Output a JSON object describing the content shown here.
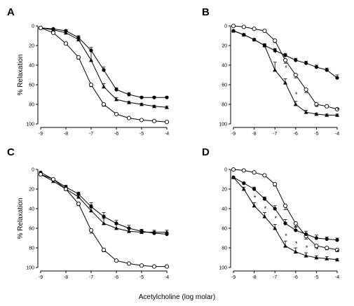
{
  "figure": {
    "shared_xlabel": "Acetylcholine (log molar)",
    "shared_ylabel": "% Relaxation"
  },
  "chart_data": [
    {
      "panel": "A",
      "type": "line",
      "ylabel": "% Relaxation",
      "xlim": [
        -9,
        -4
      ],
      "ylim": [
        0,
        100
      ],
      "y_inverted": true,
      "x_ticks": [
        "-9",
        "-8",
        "-7",
        "-6",
        "-5",
        "-4"
      ],
      "y_ticks": [
        "0",
        "20",
        "40",
        "60",
        "80",
        "100"
      ],
      "series": [
        {
          "marker": "filled-circle",
          "x": [
            -9,
            -8.5,
            -8,
            -7.5,
            -7,
            -6.5,
            -6,
            -5.5,
            -5,
            -4.5,
            -4
          ],
          "y": [
            2,
            3,
            5,
            12,
            25,
            45,
            65,
            70,
            73,
            73,
            73
          ],
          "err": [
            0,
            0,
            1,
            2,
            3,
            3,
            2,
            2,
            1,
            1,
            1
          ]
        },
        {
          "marker": "filled-triangle",
          "x": [
            -9,
            -8.5,
            -8,
            -7.5,
            -7,
            -6.5,
            -6,
            -5.5,
            -5,
            -4.5,
            -4
          ],
          "y": [
            2,
            4,
            7,
            14,
            35,
            62,
            75,
            78,
            80,
            82,
            83
          ],
          "err": [
            0,
            0,
            1,
            2,
            10,
            3,
            2,
            1,
            1,
            1,
            1
          ]
        },
        {
          "marker": "open-circle",
          "x": [
            -9,
            -8.5,
            -8,
            -7.5,
            -7,
            -6.5,
            -6,
            -5.5,
            -5,
            -4.5,
            -4
          ],
          "y": [
            2,
            7,
            18,
            32,
            60,
            80,
            90,
            94,
            96,
            97,
            98
          ],
          "err": [
            0,
            0,
            1,
            2,
            2,
            2,
            1,
            1,
            0,
            0,
            0
          ]
        }
      ],
      "stars": []
    },
    {
      "panel": "B",
      "type": "line",
      "ylabel": "",
      "xlim": [
        -9,
        -4
      ],
      "ylim": [
        0,
        100
      ],
      "y_inverted": true,
      "x_ticks": [
        "-9",
        "-8",
        "-7",
        "-6",
        "-5",
        "-4"
      ],
      "y_ticks": [
        "0",
        "20",
        "40",
        "60",
        "80",
        "100"
      ],
      "series": [
        {
          "marker": "open-circle",
          "x": [
            -9,
            -8.5,
            -8,
            -7.5,
            -7,
            -6.5,
            -6,
            -5.5,
            -5,
            -4.5,
            -4
          ],
          "y": [
            0,
            1,
            3,
            5,
            15,
            35,
            50,
            65,
            80,
            82,
            85
          ],
          "err": [
            0,
            0,
            0,
            1,
            2,
            3,
            3,
            3,
            2,
            1,
            1
          ]
        },
        {
          "marker": "filled-circle",
          "x": [
            -9,
            -8.5,
            -8,
            -7.5,
            -7,
            -6.5,
            -6,
            -5.5,
            -5,
            -4.5,
            -4
          ],
          "y": [
            5,
            9,
            14,
            20,
            25,
            30,
            35,
            38,
            42,
            45,
            53
          ],
          "err": [
            0,
            1,
            1,
            1,
            2,
            2,
            2,
            2,
            2,
            2,
            3
          ]
        },
        {
          "marker": "filled-triangle",
          "x": [
            -9,
            -8.5,
            -8,
            -7.5,
            -7,
            -6.5,
            -6,
            -5.5,
            -5,
            -4.5,
            -4
          ],
          "y": [
            5,
            9,
            14,
            20,
            45,
            58,
            80,
            88,
            90,
            91,
            91
          ],
          "err": [
            0,
            1,
            1,
            2,
            8,
            4,
            3,
            2,
            1,
            1,
            1
          ]
        }
      ],
      "stars": [
        {
          "x": -7.0,
          "y": 30
        },
        {
          "x": -6.5,
          "y": 45
        },
        {
          "x": -6.0,
          "y": 72
        },
        {
          "x": -5.0,
          "y": 85
        },
        {
          "x": -4.0,
          "y": 88
        }
      ]
    },
    {
      "panel": "C",
      "type": "line",
      "ylabel": "% Relaxation",
      "xlim": [
        -9,
        -4
      ],
      "ylim": [
        0,
        100
      ],
      "y_inverted": true,
      "x_ticks": [
        "-9",
        "-8",
        "-7",
        "-6",
        "-5",
        "-4"
      ],
      "y_ticks": [
        "0",
        "20",
        "40",
        "60",
        "80",
        "100"
      ],
      "series": [
        {
          "marker": "filled-circle",
          "x": [
            -9,
            -8.5,
            -8,
            -7.5,
            -7,
            -6.5,
            -6,
            -5.5,
            -5,
            -4.5,
            -4
          ],
          "y": [
            3,
            10,
            18,
            25,
            38,
            48,
            55,
            60,
            63,
            65,
            66
          ],
          "err": [
            0,
            1,
            2,
            2,
            4,
            4,
            3,
            3,
            2,
            2,
            2
          ]
        },
        {
          "marker": "filled-triangle",
          "x": [
            -9,
            -8.5,
            -8,
            -7.5,
            -7,
            -6.5,
            -6,
            -5.5,
            -5,
            -4.5,
            -4
          ],
          "y": [
            5,
            12,
            20,
            28,
            42,
            55,
            60,
            63,
            64,
            64,
            64
          ],
          "err": [
            0,
            1,
            1,
            2,
            6,
            5,
            4,
            3,
            2,
            2,
            2
          ]
        },
        {
          "marker": "open-circle",
          "x": [
            -9,
            -8.5,
            -8,
            -7.5,
            -7,
            -6.5,
            -6,
            -5.5,
            -5,
            -4.5,
            -4
          ],
          "y": [
            5,
            10,
            20,
            35,
            62,
            82,
            93,
            96,
            98,
            99,
            99
          ],
          "err": [
            0,
            1,
            1,
            2,
            3,
            2,
            1,
            1,
            0,
            0,
            0
          ]
        }
      ],
      "stars": []
    },
    {
      "panel": "D",
      "type": "line",
      "ylabel": "",
      "xlim": [
        -9,
        -4
      ],
      "ylim": [
        0,
        100
      ],
      "y_inverted": true,
      "x_ticks": [
        "-9",
        "-8",
        "-7",
        "-6",
        "-5",
        "-4"
      ],
      "y_ticks": [
        "0",
        "20",
        "40",
        "60",
        "80",
        "100"
      ],
      "series": [
        {
          "marker": "open-circle",
          "x": [
            -9,
            -8.5,
            -8,
            -7.5,
            -7,
            -6.5,
            -6,
            -5.5,
            -5,
            -4.5,
            -4
          ],
          "y": [
            0,
            1,
            3,
            6,
            15,
            37,
            55,
            68,
            78,
            80,
            82
          ],
          "err": [
            0,
            0,
            0,
            1,
            2,
            4,
            4,
            3,
            2,
            2,
            2
          ]
        },
        {
          "marker": "filled-circle",
          "x": [
            -9,
            -8.5,
            -8,
            -7.5,
            -7,
            -6.5,
            -6,
            -5.5,
            -5,
            -4.5,
            -4
          ],
          "y": [
            8,
            14,
            20,
            30,
            40,
            55,
            62,
            66,
            70,
            71,
            72
          ],
          "err": [
            0,
            1,
            2,
            2,
            3,
            4,
            4,
            3,
            3,
            2,
            2
          ]
        },
        {
          "marker": "filled-triangle",
          "x": [
            -9,
            -8.5,
            -8,
            -7.5,
            -7,
            -6.5,
            -6,
            -5.5,
            -5,
            -4.5,
            -4
          ],
          "y": [
            8,
            20,
            37,
            48,
            60,
            78,
            84,
            88,
            90,
            91,
            92
          ],
          "err": [
            0,
            2,
            3,
            4,
            4,
            5,
            4,
            3,
            2,
            2,
            1
          ]
        }
      ],
      "stars": [
        {
          "x": -8.0,
          "y": 31
        },
        {
          "x": -7.5,
          "y": 42
        },
        {
          "x": -7.0,
          "y": 52
        },
        {
          "x": -6.5,
          "y": 70
        },
        {
          "x": -6.0,
          "y": 78
        },
        {
          "x": -5.5,
          "y": 82
        },
        {
          "x": -5.0,
          "y": 84
        },
        {
          "x": -4.0,
          "y": 86
        }
      ]
    }
  ]
}
